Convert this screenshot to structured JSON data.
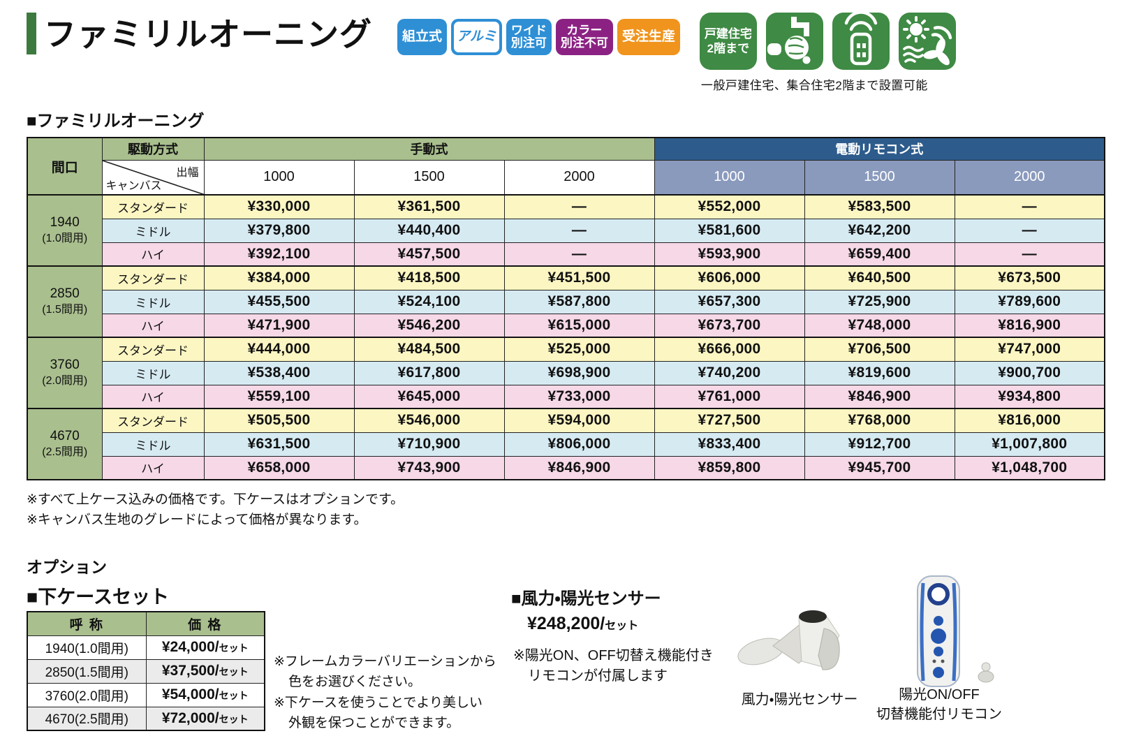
{
  "colors": {
    "title_bar_green": "#3d7a40",
    "header_green": "#a9bf8e",
    "electric_blue": "#2d5c8c",
    "electric_subblue": "#8a9abd",
    "row_yellow": "#fcf6c3",
    "row_blue": "#d6eaf2",
    "row_pink": "#f6d8e7",
    "badge_blue": "#2e8fd5",
    "badge_purple": "#8b2283",
    "badge_orange": "#f0941d",
    "icon_green": "#3f8a44"
  },
  "header": {
    "title": "ファミリルオーニング",
    "badges": [
      {
        "line1": "組立式",
        "line2": "",
        "type": "blue"
      },
      {
        "line1": "アルミ",
        "line2": "",
        "type": "outline"
      },
      {
        "line1": "ワイド",
        "line2": "別注可",
        "type": "blue"
      },
      {
        "line1": "カラー",
        "line2": "別注不可",
        "type": "purple"
      },
      {
        "line1": "受注生産",
        "line2": "",
        "type": "orange"
      }
    ],
    "house_icon": {
      "line1": "戸建住宅",
      "line2": "2階まで"
    },
    "icons_caption": "一般戸建住宅、集合住宅2階まで設置可能"
  },
  "main_table": {
    "section_title": "■ファミリルオーニング",
    "header": {
      "maguchi": "間口",
      "drive_method": "駆動方式",
      "depth": "出幅",
      "canvas": "キャンバス",
      "manual": "手動式",
      "electric": "電動リモコン式",
      "widths_manual": [
        "1000",
        "1500",
        "2000"
      ],
      "widths_electric": [
        "1000",
        "1500",
        "2000"
      ]
    },
    "groups": [
      {
        "size": "1940",
        "note": "(1.0間用)",
        "grades": [
          {
            "name": "スタンダード",
            "manual": [
              "¥330,000",
              "¥361,500",
              "—"
            ],
            "electric": [
              "¥552,000",
              "¥583,500",
              "—"
            ]
          },
          {
            "name": "ミドル",
            "manual": [
              "¥379,800",
              "¥440,400",
              "—"
            ],
            "electric": [
              "¥581,600",
              "¥642,200",
              "—"
            ]
          },
          {
            "name": "ハイ",
            "manual": [
              "¥392,100",
              "¥457,500",
              "—"
            ],
            "electric": [
              "¥593,900",
              "¥659,400",
              "—"
            ]
          }
        ]
      },
      {
        "size": "2850",
        "note": "(1.5間用)",
        "grades": [
          {
            "name": "スタンダード",
            "manual": [
              "¥384,000",
              "¥418,500",
              "¥451,500"
            ],
            "electric": [
              "¥606,000",
              "¥640,500",
              "¥673,500"
            ]
          },
          {
            "name": "ミドル",
            "manual": [
              "¥455,500",
              "¥524,100",
              "¥587,800"
            ],
            "electric": [
              "¥657,300",
              "¥725,900",
              "¥789,600"
            ]
          },
          {
            "name": "ハイ",
            "manual": [
              "¥471,900",
              "¥546,200",
              "¥615,000"
            ],
            "electric": [
              "¥673,700",
              "¥748,000",
              "¥816,900"
            ]
          }
        ]
      },
      {
        "size": "3760",
        "note": "(2.0間用)",
        "grades": [
          {
            "name": "スタンダード",
            "manual": [
              "¥444,000",
              "¥484,500",
              "¥525,000"
            ],
            "electric": [
              "¥666,000",
              "¥706,500",
              "¥747,000"
            ]
          },
          {
            "name": "ミドル",
            "manual": [
              "¥538,400",
              "¥617,800",
              "¥698,900"
            ],
            "electric": [
              "¥740,200",
              "¥819,600",
              "¥900,700"
            ]
          },
          {
            "name": "ハイ",
            "manual": [
              "¥559,100",
              "¥645,000",
              "¥733,000"
            ],
            "electric": [
              "¥761,000",
              "¥846,900",
              "¥934,800"
            ]
          }
        ]
      },
      {
        "size": "4670",
        "note": "(2.5間用)",
        "grades": [
          {
            "name": "スタンダード",
            "manual": [
              "¥505,500",
              "¥546,000",
              "¥594,000"
            ],
            "electric": [
              "¥727,500",
              "¥768,000",
              "¥816,000"
            ]
          },
          {
            "name": "ミドル",
            "manual": [
              "¥631,500",
              "¥710,900",
              "¥806,000"
            ],
            "electric": [
              "¥833,400",
              "¥912,700",
              "¥1,007,800"
            ]
          },
          {
            "name": "ハイ",
            "manual": [
              "¥658,000",
              "¥743,900",
              "¥846,900"
            ],
            "electric": [
              "¥859,800",
              "¥945,700",
              "¥1,048,700"
            ]
          }
        ]
      }
    ],
    "notes": [
      "※すべて上ケース込みの価格です。下ケースはオプションです。",
      "※キャンバス生地のグレードによって価格が異なります。"
    ]
  },
  "options": {
    "heading": "オプション",
    "lower_case": {
      "title": "■下ケースセット",
      "headers": [
        "呼 称",
        "価 格"
      ],
      "rows": [
        {
          "name": "1940(1.0間用)",
          "price": "¥24,000/",
          "unit": "セット"
        },
        {
          "name": "2850(1.5間用)",
          "price": "¥37,500/",
          "unit": "セット"
        },
        {
          "name": "3760(2.0間用)",
          "price": "¥54,000/",
          "unit": "セット"
        },
        {
          "name": "4670(2.5間用)",
          "price": "¥72,000/",
          "unit": "セット"
        }
      ],
      "notes": [
        "※フレームカラーバリエーションから",
        "色をお選びください。",
        "※下ケースを使うことでより美しい",
        "外観を保つことができます。"
      ]
    },
    "sensor": {
      "title": "■風力・陽光センサー",
      "price": "¥248,200/",
      "unit": "セット",
      "notes": [
        "※陽光ON、OFF切替え機能付き",
        "リモコンが付属します"
      ],
      "caption_sensor": "風力・陽光センサー",
      "caption_remote_line1": "陽光ON/OFF",
      "caption_remote_line2": "切替機能付リモコン"
    }
  }
}
